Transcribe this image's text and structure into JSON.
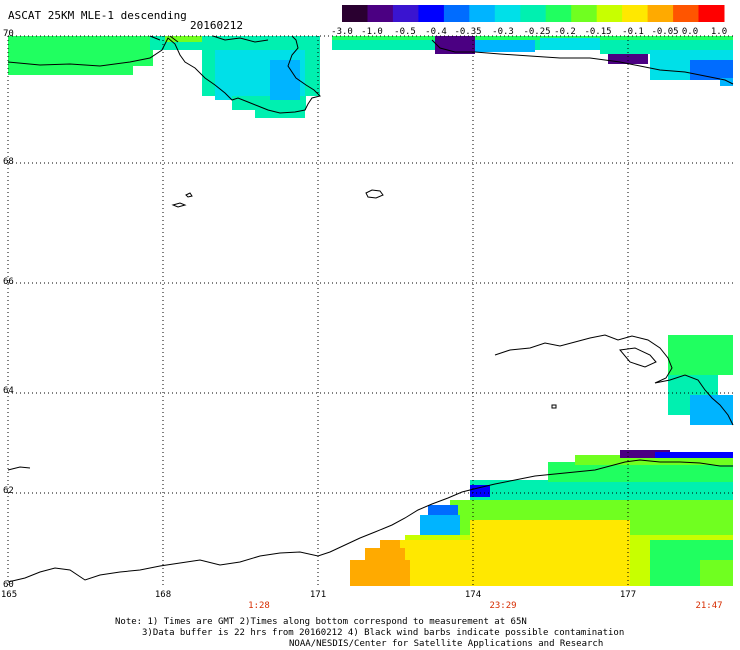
{
  "title": "ASCAT 25KM MLE-1 descending",
  "date": "20160212",
  "colorbar": {
    "labels": [
      "-3.0",
      "-1.0",
      "-0.5",
      "-0.4",
      "-0.35",
      "-0.3",
      "-0.25",
      "-0.2",
      "-0.15",
      "-0.1",
      "-0.05",
      "0.0",
      "1.0"
    ],
    "colors": [
      "#2a0030",
      "#4b0082",
      "#3a14d0",
      "#0000ff",
      "#006cff",
      "#00b4ff",
      "#00e0e8",
      "#00f0b0",
      "#20ff60",
      "#70ff20",
      "#c8ff00",
      "#ffe800",
      "#ffaa00",
      "#ff5500",
      "#ff0000"
    ]
  },
  "map": {
    "lat_labels": [
      "70",
      "68",
      "66",
      "64",
      "62",
      "60"
    ],
    "lon_labels": [
      "165",
      "168",
      "171",
      "174",
      "177"
    ],
    "time_labels": [
      "1:28",
      "23:29",
      "21:47"
    ]
  },
  "notes": {
    "line1": "Note: 1) Times are GMT 2)Times along bottom correspond to measurement at 65N",
    "line2": "3)Data buffer is 22 hrs from 20160212 4) Black wind barbs indicate possible contamination",
    "line3": "NOAA/NESDIS/Center for Satellite Applications and Research"
  }
}
